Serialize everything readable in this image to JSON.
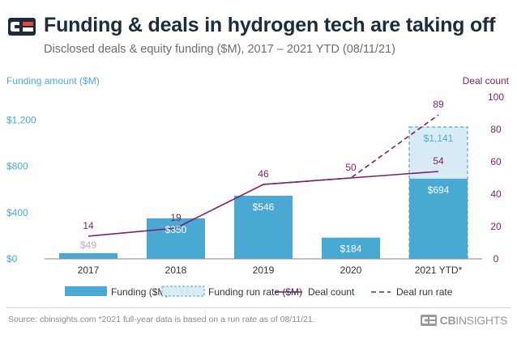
{
  "title": "Funding & deals in hydrogen tech are taking off",
  "subtitle": "Disclosed deals & equity funding ($M), 2017 – 2021 YTD (08/11/21)",
  "footer": {
    "source": "Source: cbinsights.com  *2021 full-year data is based on a run rate as of 08/11/21.",
    "brand_bold": "CB",
    "brand_thin": "INSIGHTS"
  },
  "colors": {
    "funding": "#4aa9d2",
    "funding_run_rate": "#d9ecf6",
    "deal_line": "#7b1f6a",
    "left_axis": "#4aa9d2",
    "right_axis": "#7b1f6a",
    "title": "#1f2b3a"
  },
  "chart_data": {
    "type": "bar",
    "categories": [
      "2017",
      "2018",
      "2019",
      "2020",
      "2021 YTD*"
    ],
    "y_left_label": "Funding amount ($M)",
    "y_right_label": "Deal count",
    "y_left_range": [
      0,
      1400
    ],
    "y_right_range": [
      0,
      100
    ],
    "y_left_ticks": [
      0,
      400,
      800,
      1200
    ],
    "y_left_tick_labels": [
      "$0",
      "$400",
      "$800",
      "$1,200"
    ],
    "y_right_ticks": [
      0,
      20,
      40,
      60,
      80,
      100
    ],
    "series": [
      {
        "name": "Funding ($M)",
        "kind": "bar",
        "axis": "left",
        "values": [
          49,
          350,
          546,
          184,
          694
        ],
        "labels": [
          "$49",
          "$350",
          "$546",
          "$184",
          "$694"
        ]
      },
      {
        "name": "Funding run rate ($M)",
        "kind": "bar-stack",
        "axis": "left",
        "values": [
          null,
          null,
          null,
          null,
          1141
        ],
        "labels": [
          "",
          "",
          "",
          "",
          "$1,141"
        ]
      },
      {
        "name": "Deal count",
        "kind": "line",
        "axis": "right",
        "values": [
          14,
          19,
          46,
          50,
          54
        ]
      },
      {
        "name": "Deal run rate",
        "kind": "dashed-line",
        "axis": "right",
        "values": [
          null,
          null,
          46,
          50,
          89
        ]
      }
    ],
    "legend": [
      "Funding ($M)",
      "Funding run rate ($M)",
      "Deal count",
      "Deal run rate"
    ],
    "legend_position": "bottom",
    "grid": false
  }
}
